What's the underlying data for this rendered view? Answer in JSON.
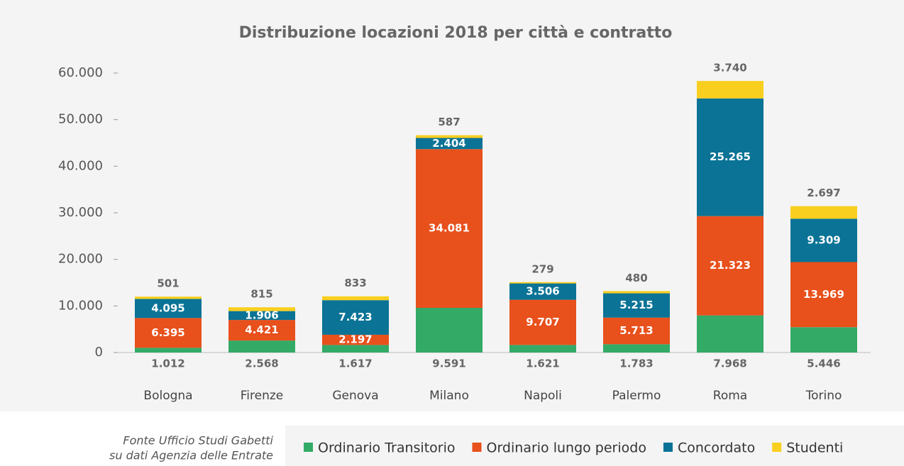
{
  "chart_data": {
    "type": "stacked_bar",
    "title": "Distribuzione locazioni 2018 per città e contratto",
    "categories": [
      "Bologna",
      "Firenze",
      "Genova",
      "Milano",
      "Napoli",
      "Palermo",
      "Roma",
      "Torino"
    ],
    "series": [
      {
        "name": "Ordinario Transitorio",
        "color": "#33aa66",
        "values": [
          1012,
          2568,
          1617,
          9591,
          1621,
          1783,
          7968,
          5446
        ],
        "value_labels": [
          "1.012",
          "2.568",
          "1.617",
          "9.591",
          "1.621",
          "1.783",
          "7.968",
          "5.446"
        ]
      },
      {
        "name": "Ordinario lungo periodo",
        "color": "#e8501c",
        "values": [
          6395,
          4421,
          2197,
          34081,
          9707,
          5713,
          21323,
          13969
        ],
        "value_labels": [
          "6.395",
          "4.421",
          "2.197",
          "34.081",
          "9.707",
          "5.713",
          "21.323",
          "13.969"
        ]
      },
      {
        "name": "Concordato",
        "color": "#0a7396",
        "values": [
          4095,
          1906,
          7423,
          2404,
          3506,
          5215,
          25265,
          9309
        ],
        "value_labels": [
          "4.095",
          "1.906",
          "7.423",
          "2.404",
          "3.506",
          "5.215",
          "25.265",
          "9.309"
        ]
      },
      {
        "name": "Studenti",
        "color": "#f9cf1f",
        "values": [
          501,
          815,
          833,
          587,
          279,
          480,
          3740,
          2697
        ],
        "value_labels": [
          "501",
          "815",
          "833",
          "587",
          "279",
          "480",
          "3.740",
          "2.697"
        ]
      }
    ],
    "ylim": [
      0,
      60000
    ],
    "yticks": [
      0,
      {
        "value": 10000,
        "label": "10.000"
      },
      {
        "value": 20000,
        "label": "20.000"
      },
      {
        "value": 30000,
        "label": "30.000"
      },
      {
        "value": 40000,
        "label": "40.000"
      },
      {
        "value": 50000,
        "label": "50.000"
      },
      {
        "value": 60000,
        "label": "60.000"
      }
    ],
    "grid": false,
    "legend": "bottom",
    "source": [
      "Fonte Ufficio Studi Gabetti",
      "su dati Agenzia delle Entrate"
    ]
  }
}
